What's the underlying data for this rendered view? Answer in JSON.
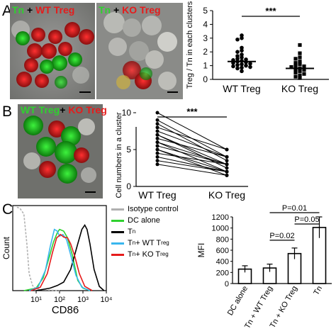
{
  "panels": {
    "a": {
      "letter": "A",
      "micro_left": {
        "label_parts": [
          {
            "text": "Tn",
            "color": "#2fd12f"
          },
          {
            "text": " + ",
            "color": "#000000"
          },
          {
            "text": "WT Treg",
            "color": "#e51c1c"
          }
        ]
      },
      "micro_right": {
        "label_parts": [
          {
            "text": "Tn",
            "color": "#2fd12f"
          },
          {
            "text": " + ",
            "color": "#000000"
          },
          {
            "text": "KO Treg",
            "color": "#e51c1c"
          }
        ]
      }
    },
    "b": {
      "letter": "B",
      "micro": {
        "label_parts": [
          {
            "text": "WT Treg",
            "color": "#2fd12f"
          },
          {
            "text": "+ ",
            "color": "#000000"
          },
          {
            "text": "KO Treg",
            "color": "#e51c1c"
          }
        ]
      }
    },
    "c": {
      "letter": "C"
    }
  },
  "colors": {
    "green": "#2fd12f",
    "red": "#e51c1c",
    "black": "#000000",
    "grey": "#b0b0b0",
    "cyan": "#39b6ee"
  },
  "chart_data": [
    {
      "id": "A-scatter",
      "type": "scatter",
      "ylabel": "Treg / Tn in each clusters",
      "categories": [
        "WT Treg",
        "KO Treg"
      ],
      "ylim": [
        0,
        5
      ],
      "yticks": [
        0,
        1,
        2,
        3,
        4,
        5
      ],
      "series": [
        {
          "category": "WT Treg",
          "marker": "circle",
          "values": [
            3.2,
            3.0,
            2.9,
            2.3,
            2.1,
            2.0,
            1.8,
            1.7,
            1.6,
            1.5,
            1.45,
            1.4,
            1.35,
            1.3,
            1.25,
            1.2,
            1.15,
            1.1,
            1.05,
            1.0,
            0.95,
            0.9,
            0.85,
            0.8,
            0.6
          ],
          "median": 1.3
        },
        {
          "category": "KO Treg",
          "marker": "square",
          "values": [
            2.5,
            1.9,
            1.6,
            1.5,
            1.3,
            1.2,
            1.1,
            1.0,
            0.95,
            0.9,
            0.8,
            0.75,
            0.7,
            0.6,
            0.5,
            0.4,
            0.3,
            0.2,
            0.1
          ],
          "median": 0.8
        }
      ],
      "annotation": "***"
    },
    {
      "id": "B-paired",
      "type": "line",
      "ylabel": "Cell numbers in a cluster",
      "categories": [
        "WT Treg",
        "KO Treg"
      ],
      "ylim": [
        0,
        10
      ],
      "yticks": [
        0,
        5,
        10
      ],
      "pairs": [
        [
          10,
          5
        ],
        [
          9,
          4
        ],
        [
          8.5,
          3.5
        ],
        [
          8,
          5
        ],
        [
          7.5,
          4
        ],
        [
          7,
          3
        ],
        [
          7,
          2.5
        ],
        [
          6.5,
          4
        ],
        [
          6,
          3
        ],
        [
          6,
          2
        ],
        [
          5.5,
          3
        ],
        [
          5,
          2
        ],
        [
          5,
          1.5
        ],
        [
          4.5,
          3
        ],
        [
          4,
          2
        ],
        [
          3.5,
          2
        ],
        [
          3,
          1.5
        ]
      ],
      "annotation": "***"
    },
    {
      "id": "C-histogram",
      "type": "line",
      "xlabel": "CD86",
      "ylabel": "Count",
      "xscale": "log",
      "xlim": [
        1,
        10000
      ],
      "xticks": [
        {
          "v": 10,
          "label": "10¹"
        },
        {
          "v": 100,
          "label": "10²"
        },
        {
          "v": 1000,
          "label": "10³"
        },
        {
          "v": 10000,
          "label": "10⁴"
        }
      ],
      "legend": [
        {
          "label": "Isotype control",
          "color": "#b0b0b0"
        },
        {
          "label": "DC alone",
          "color": "#2fd12f"
        },
        {
          "label_main": "T",
          "label_sub": "n",
          "color": "#000000"
        },
        {
          "label_main": "T",
          "label_sub": "n",
          "label_rest": " + WT T",
          "label_sub2": "reg",
          "color": "#39b6ee"
        },
        {
          "label_main": "T",
          "label_sub": "n",
          "label_rest": " + KO T",
          "label_sub2": "reg",
          "color": "#e51c1c"
        }
      ],
      "series": [
        {
          "name": "Isotype control",
          "color": "#b0b0b0",
          "dash": "3,2",
          "points": [
            [
              1.5,
              0.98
            ],
            [
              2,
              0.97
            ],
            [
              3,
              0.9
            ],
            [
              4,
              0.55
            ],
            [
              5,
              0.2
            ],
            [
              7,
              0.06
            ],
            [
              10,
              0.02
            ],
            [
              20,
              0.01
            ],
            [
              100,
              0
            ]
          ]
        },
        {
          "name": "DC alone",
          "color": "#2fd12f",
          "points": [
            [
              3,
              0
            ],
            [
              10,
              0.03
            ],
            [
              20,
              0.15
            ],
            [
              35,
              0.38
            ],
            [
              55,
              0.57
            ],
            [
              80,
              0.68
            ],
            [
              100,
              0.72
            ],
            [
              150,
              0.7
            ],
            [
              220,
              0.62
            ],
            [
              350,
              0.42
            ],
            [
              600,
              0.12
            ],
            [
              1000,
              0.03
            ],
            [
              2000,
              0
            ]
          ]
        },
        {
          "name": "Tn",
          "color": "#000000",
          "points": [
            [
              10,
              0
            ],
            [
              40,
              0.03
            ],
            [
              80,
              0.06
            ],
            [
              150,
              0.1
            ],
            [
              300,
              0.25
            ],
            [
              600,
              0.55
            ],
            [
              900,
              0.72
            ],
            [
              1200,
              0.77
            ],
            [
              1500,
              0.72
            ],
            [
              2000,
              0.55
            ],
            [
              3000,
              0.25
            ],
            [
              5000,
              0.05
            ],
            [
              8000,
              0
            ]
          ]
        },
        {
          "name": "Tn + WT Treg",
          "color": "#39b6ee",
          "points": [
            [
              5,
              0
            ],
            [
              12,
              0.04
            ],
            [
              25,
              0.24
            ],
            [
              40,
              0.52
            ],
            [
              60,
              0.72
            ],
            [
              80,
              0.7
            ],
            [
              100,
              0.64
            ],
            [
              140,
              0.66
            ],
            [
              200,
              0.6
            ],
            [
              300,
              0.42
            ],
            [
              500,
              0.18
            ],
            [
              900,
              0.04
            ],
            [
              2000,
              0
            ]
          ]
        },
        {
          "name": "Tn + KO Treg",
          "color": "#e51c1c",
          "points": [
            [
              6,
              0
            ],
            [
              15,
              0.04
            ],
            [
              30,
              0.2
            ],
            [
              50,
              0.45
            ],
            [
              75,
              0.62
            ],
            [
              110,
              0.66
            ],
            [
              150,
              0.63
            ],
            [
              220,
              0.62
            ],
            [
              300,
              0.55
            ],
            [
              450,
              0.4
            ],
            [
              700,
              0.2
            ],
            [
              1200,
              0.05
            ],
            [
              2500,
              0
            ]
          ]
        }
      ]
    },
    {
      "id": "C-bar",
      "type": "bar",
      "ylabel": "MFI",
      "categories": [
        "DC alone",
        "Tn + WT Treg",
        "Tn + KO Treg",
        "Tn"
      ],
      "values": [
        260,
        280,
        540,
        1010
      ],
      "errors": [
        60,
        70,
        100,
        190
      ],
      "ylim": [
        0,
        1200
      ],
      "yticks": [
        0,
        200,
        400,
        600,
        800,
        1000,
        1200
      ],
      "significance": [
        {
          "from": 1,
          "to": 2,
          "label": "P=0.02"
        },
        {
          "from": 2,
          "to": 3,
          "label": "P=0.05"
        },
        {
          "from": 1,
          "to": 3,
          "label": "P=0.01"
        }
      ]
    }
  ]
}
